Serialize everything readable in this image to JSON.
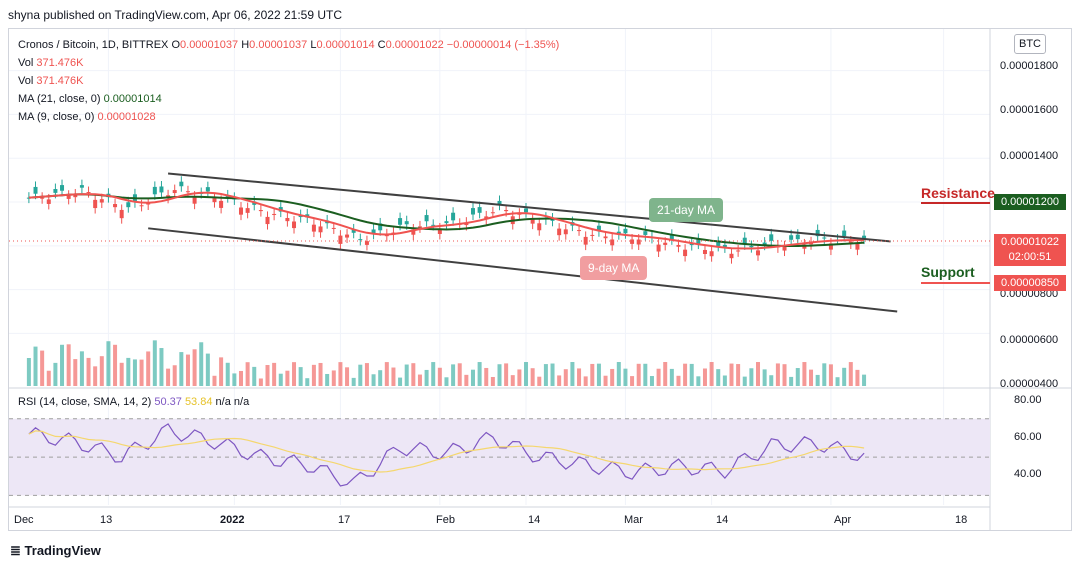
{
  "publisher_line": "shyna published on TradingView.com, Apr 06, 2022 21:59 UTC",
  "legend": {
    "symbol": "Cronos / Bitcoin, 1D, BITTREX",
    "o_label": "O",
    "o_val": "0.00001037",
    "h_label": "H",
    "h_val": "0.00001037",
    "l_label": "L",
    "l_val": "0.00001014",
    "c_label": "C",
    "c_val": "0.00001022",
    "change": "−0.00000014 (−1.35%)",
    "vol_label": "Vol",
    "vol_val": "371.476K",
    "vol2_label": "Vol",
    "vol2_val": "371.476K",
    "ma21_label": "MA (21, close, 0)",
    "ma21_val": "0.00001014",
    "ma9_label": "MA (9, close, 0)",
    "ma9_val": "0.00001028"
  },
  "currency_button": "BTC",
  "price_axis": [
    "0.00001800",
    "0.00001600",
    "0.00001400",
    "0.00000800",
    "0.00000600",
    "0.00000400"
  ],
  "price_tags": {
    "resistance": "0.00001200",
    "current": "0.00001022",
    "countdown": "02:00:51",
    "support": "0.00000850"
  },
  "annotations": {
    "resistance": "Resistance",
    "support": "Support",
    "ma21_bubble": "21-day MA",
    "ma9_bubble": "9-day MA"
  },
  "rsi_legend": {
    "label": "RSI (14, close, SMA, 14, 2)",
    "rsi_val": "50.37",
    "sma_val": "53.84",
    "na1": "n/a",
    "na2": "n/a"
  },
  "rsi_axis": [
    "80.00",
    "60.00",
    "40.00"
  ],
  "time_axis": [
    "Dec",
    "13",
    "2022",
    "17",
    "Feb",
    "14",
    "Mar",
    "14",
    "Apr",
    "18"
  ],
  "brand": "TradingView",
  "colors": {
    "up": "#26a69a",
    "down": "#ef5350",
    "ma9": "#ef5350",
    "ma21": "#1b5e20",
    "channel": "#404040",
    "rsi": "#7e57c2",
    "rsi_sma": "#f5d76e",
    "rsi_band": "#ede7f6"
  },
  "chart_data": [
    {
      "type": "candlestick",
      "title": "Cronos / Bitcoin, 1D, BITTREX",
      "price_range": [
        3.6e-06,
        1.99e-05
      ],
      "closes_sampled_weekly": [
        {
          "date": "2021-12-01",
          "close": 1.22e-05
        },
        {
          "date": "2021-12-08",
          "close": 1.25e-05
        },
        {
          "date": "2021-12-15",
          "close": 1.17e-05
        },
        {
          "date": "2021-12-22",
          "close": 1.26e-05
        },
        {
          "date": "2021-12-29",
          "close": 1.22e-05
        },
        {
          "date": "2022-01-05",
          "close": 1.15e-05
        },
        {
          "date": "2022-01-12",
          "close": 1.11e-05
        },
        {
          "date": "2022-01-19",
          "close": 1.03e-05
        },
        {
          "date": "2022-01-26",
          "close": 1.09e-05
        },
        {
          "date": "2022-02-02",
          "close": 1.1e-05
        },
        {
          "date": "2022-02-09",
          "close": 1.17e-05
        },
        {
          "date": "2022-02-16",
          "close": 1.11e-05
        },
        {
          "date": "2022-02-23",
          "close": 1.05e-05
        },
        {
          "date": "2022-03-02",
          "close": 1.04e-05
        },
        {
          "date": "2022-03-09",
          "close": 1e-05
        },
        {
          "date": "2022-03-16",
          "close": 9.8e-06
        },
        {
          "date": "2022-03-23",
          "close": 1.01e-05
        },
        {
          "date": "2022-03-30",
          "close": 1.03e-05
        },
        {
          "date": "2022-04-06",
          "close": 1.022e-05
        }
      ],
      "levels": {
        "resistance": 1.2e-05,
        "support": 8.5e-06
      },
      "series": [
        {
          "name": "MA (21, close, 0)",
          "last": 1.014e-05
        },
        {
          "name": "MA (9, close, 0)",
          "last": 1.028e-05
        }
      ]
    },
    {
      "type": "line",
      "title": "RSI (14, close, SMA, 14, 2)",
      "ylim": [
        25,
        85
      ],
      "bands": [
        30,
        70
      ],
      "rsi_sampled_weekly": [
        {
          "date": "2021-12-01",
          "value": 62
        },
        {
          "date": "2021-12-08",
          "value": 58
        },
        {
          "date": "2021-12-15",
          "value": 50
        },
        {
          "date": "2021-12-22",
          "value": 64
        },
        {
          "date": "2021-12-29",
          "value": 58
        },
        {
          "date": "2022-01-05",
          "value": 50
        },
        {
          "date": "2022-01-12",
          "value": 46
        },
        {
          "date": "2022-01-19",
          "value": 36
        },
        {
          "date": "2022-01-26",
          "value": 55
        },
        {
          "date": "2022-02-02",
          "value": 52
        },
        {
          "date": "2022-02-09",
          "value": 60
        },
        {
          "date": "2022-02-16",
          "value": 50
        },
        {
          "date": "2022-02-23",
          "value": 46
        },
        {
          "date": "2022-03-02",
          "value": 42
        },
        {
          "date": "2022-03-09",
          "value": 45
        },
        {
          "date": "2022-03-16",
          "value": 43
        },
        {
          "date": "2022-03-23",
          "value": 56
        },
        {
          "date": "2022-03-30",
          "value": 57
        },
        {
          "date": "2022-04-06",
          "value": 50.37
        }
      ],
      "series": [
        {
          "name": "RSI",
          "last": 50.37
        },
        {
          "name": "SMA",
          "last": 53.84
        }
      ]
    }
  ]
}
